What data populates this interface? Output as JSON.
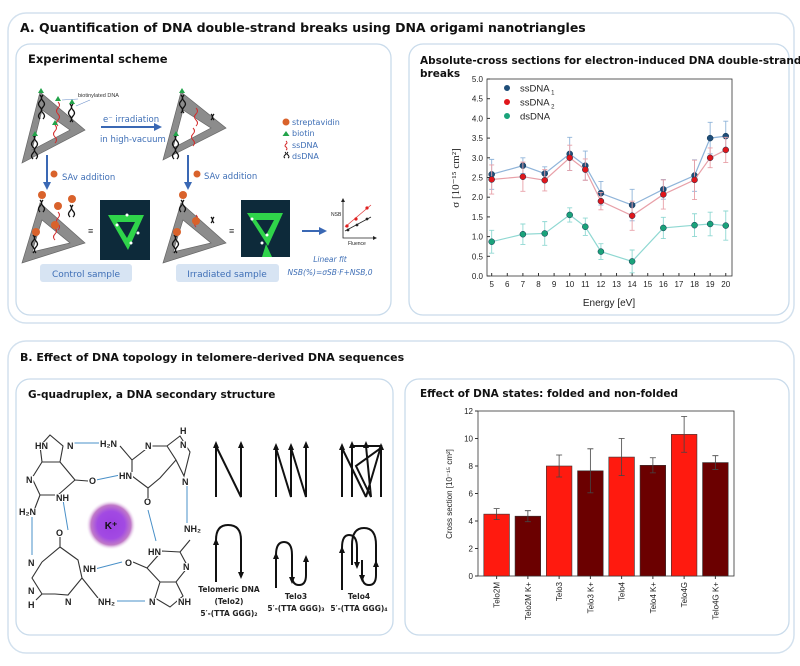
{
  "panel_a": {
    "title": "A. Quantification of DNA double-strand breaks using DNA origami nanotriangles",
    "scheme": {
      "title": "Experimental scheme",
      "biotinylated_label": "biotinylated DNA",
      "irradiation_line1": "e⁻ irradiation",
      "irradiation_line2": "in high-vacuum",
      "legend": [
        "streptavidin",
        "biotin",
        "ssDNA",
        "dsDNA"
      ],
      "sav_addition": "SAv addition",
      "equiv": "≡",
      "control_sample": "Control sample",
      "irradiated_sample": "Irradiated sample",
      "mini_plot_ylabel": "NSB",
      "mini_plot_xlabel": "Fluence",
      "fit_title": "Linear fit",
      "fit_formula": "NSB(%)=σSB·F+NSB,0"
    }
  },
  "panel_b": {
    "title": "B. Effect of DNA topology in telomere-derived DNA sequences",
    "gquad": {
      "title": "G-quadruplex, a DNA secondary structure",
      "ion": "K⁺",
      "atoms": [
        "HN",
        "N",
        "N",
        "NH",
        "O",
        "H₂N",
        "H₂N",
        "N",
        "H",
        "N",
        "HN",
        "N",
        "O",
        "NH₂",
        "N",
        "O",
        "NH",
        "N",
        "H",
        "N",
        "NH₂",
        "HN",
        "N",
        "O",
        "N",
        "NH"
      ],
      "telo2": [
        "Telomeric DNA",
        "(Telo2)",
        "5′-(TTA GGG)₂"
      ],
      "telo3": [
        "Telo3",
        "5′-(TTA GGG)₃"
      ],
      "telo4": [
        "Telo4",
        "5′-(TTA GGG)₄"
      ]
    }
  },
  "chart_data": [
    {
      "type": "scatter",
      "title": "Absolute-cross sections for electron-induced DNA double-strand breaks",
      "xlabel": "Energy [eV]",
      "ylabel": "σ [10⁻¹⁵ cm²]",
      "xlim": [
        4.7,
        20.4
      ],
      "ylim": [
        0,
        5
      ],
      "xticks": [
        5,
        6,
        7,
        8,
        9,
        10,
        11,
        12,
        13,
        14,
        15,
        16,
        17,
        18,
        19,
        20
      ],
      "yticks": [
        "0.0",
        "0.5",
        "1.0",
        "1.5",
        "2.0",
        "2.5",
        "3.0",
        "3.5",
        "4.0",
        "4.5",
        "5.0"
      ],
      "legend_position": "top-left",
      "x": [
        5,
        7,
        8.4,
        10,
        11,
        12,
        14,
        16,
        18,
        19,
        20
      ],
      "series": [
        {
          "name": "ssDNA1",
          "color": "#1f4e79",
          "line": "#8fb4d9",
          "values": [
            2.58,
            2.8,
            2.6,
            3.1,
            2.8,
            2.1,
            1.8,
            2.2,
            2.55,
            3.5,
            3.55
          ],
          "errors": [
            0.38,
            0.2,
            0.17,
            0.42,
            0.37,
            0.3,
            0.4,
            0.25,
            0.4,
            0.4,
            0.38
          ]
        },
        {
          "name": "ssDNA2",
          "color": "#e0161b",
          "line": "#e8a0a8",
          "values": [
            2.45,
            2.52,
            2.43,
            3.0,
            2.7,
            1.9,
            1.53,
            2.07,
            2.44,
            3.0,
            3.2
          ],
          "errors": [
            0.37,
            0.37,
            0.27,
            0.32,
            0.27,
            0.22,
            0.37,
            0.37,
            0.5,
            0.25,
            0.32
          ]
        },
        {
          "name": "dsDNA",
          "color": "#1aa37a",
          "line": "#8fd8d2",
          "values": [
            0.87,
            1.06,
            1.08,
            1.55,
            1.25,
            0.62,
            0.37,
            1.22,
            1.29,
            1.32,
            1.28
          ],
          "errors": [
            0.29,
            0.26,
            0.3,
            0.18,
            0.22,
            0.2,
            0.29,
            0.27,
            0.29,
            0.3,
            0.37
          ]
        }
      ]
    },
    {
      "type": "bar",
      "title": "Effect of DNA states: folded and non-folded",
      "xlabel": "",
      "ylabel": "Cross section [10⁻¹⁵ cm²]",
      "ylim": [
        0,
        12
      ],
      "yticks": [
        "0",
        "2",
        "4",
        "6",
        "8",
        "10",
        "12"
      ],
      "categories": [
        "Telo2M",
        "Telo2M K+",
        "Telo3",
        "Telo3 K+",
        "Telo4",
        "Telo4 K+",
        "Telo4G",
        "Telo4G K+"
      ],
      "values": [
        4.5,
        4.35,
        8.0,
        7.65,
        8.65,
        8.05,
        10.3,
        8.25
      ],
      "errors": [
        0.4,
        0.4,
        0.8,
        1.6,
        1.35,
        0.55,
        1.3,
        0.5
      ],
      "colors": [
        "#ff1a0f",
        "#6b0000",
        "#ff1a0f",
        "#6b0000",
        "#ff1a0f",
        "#6b0000",
        "#ff1a0f",
        "#6b0000"
      ]
    }
  ]
}
